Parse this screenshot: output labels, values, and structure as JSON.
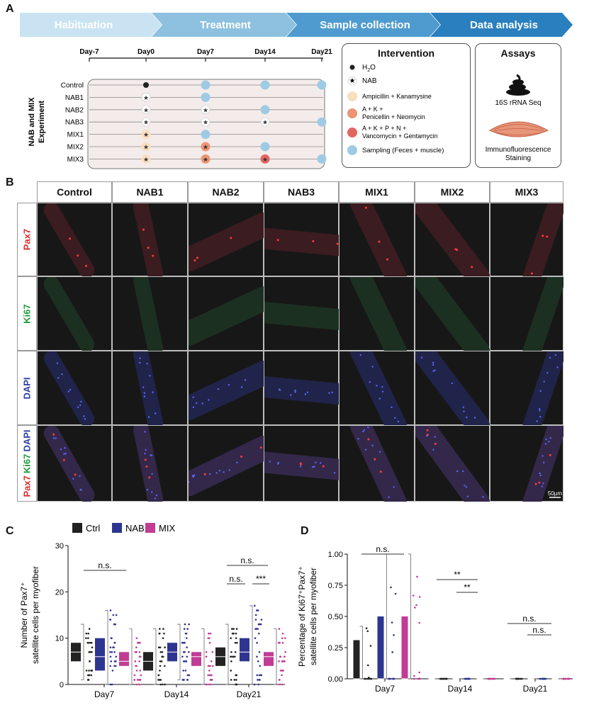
{
  "panel_labels": {
    "a": "A",
    "b": "B",
    "c": "C",
    "d": "D"
  },
  "timeline_stages": [
    "Habituation",
    "Treatment",
    "Sample collection",
    "Data analysis"
  ],
  "schedule": {
    "days": [
      "Day-7",
      "Day0",
      "Day7",
      "Day14",
      "Day21"
    ],
    "groups": [
      "Control",
      "NAB1",
      "NAB2",
      "NAB3",
      "MIX1",
      "MIX2",
      "MIX3"
    ],
    "side_label": [
      "NAB and MIX",
      "Experiment"
    ]
  },
  "intervention": {
    "title": "Intervention",
    "h2o_main": "H",
    "h2o_sub": "2",
    "h2o_tail": "O",
    "items": [
      "NAB",
      "Ampicillin + Kanamysine",
      "A + K +",
      "Penicellin + Neomycin",
      "A + K + P + N +",
      "Vancomycin + Gentamycin",
      "Sampling (Feces + muscle)"
    ]
  },
  "assays": {
    "title": "Assays",
    "items": [
      "16S rRNA Seq",
      "Immunofluorescence",
      "Staining"
    ]
  },
  "colors": {
    "h2o": "#222222",
    "amp": "#f8dfc0",
    "ak": "#ec9475",
    "akpn": "#e3665f",
    "sampling": "#9ecbe3",
    "ctrl": "#222222",
    "nab": "#2e3591",
    "mix": "#c23c95",
    "chev1": "#c9e3f2",
    "chev2": "#8ec1df",
    "chev3": "#4f9bcf",
    "chev4": "#2a7fbe"
  },
  "microscopy": {
    "columns": [
      "Control",
      "NAB1",
      "NAB2",
      "NAB3",
      "MIX1",
      "MIX2",
      "MIX3"
    ],
    "rows": [
      "Pax7",
      "Ki67",
      "DAPI"
    ],
    "merge": {
      "pax7": "Pax7",
      "ki67": "Ki67",
      "dapi": "DAPI"
    },
    "scalebar": "50μm"
  },
  "chart_data": [
    {
      "type": "box",
      "panel": "C",
      "ylabel": "Number of Pax7⁺ satellite cells per myofiber",
      "ylabel_lines": [
        "Number of Pax7⁺",
        "satellite cells per myofiber"
      ],
      "ylim": [
        0,
        30
      ],
      "yticks": [
        "0",
        "10",
        "20",
        "30"
      ],
      "categories": [
        "Day7",
        "Day14",
        "Day21"
      ],
      "legend": [
        "Ctrl",
        "NAB",
        "MIX"
      ],
      "series": [
        {
          "name": "Ctrl",
          "boxes": [
            {
              "q1": 5,
              "median": 7,
              "q3": 9,
              "min": 1,
              "max": 13
            },
            {
              "q1": 3,
              "median": 5,
              "q3": 7,
              "min": 0,
              "max": 12
            },
            {
              "q1": 4,
              "median": 6,
              "q3": 8,
              "min": 0,
              "max": 13
            }
          ]
        },
        {
          "name": "NAB",
          "boxes": [
            {
              "q1": 3,
              "median": 6,
              "q3": 10,
              "min": 0,
              "max": 16
            },
            {
              "q1": 5,
              "median": 7,
              "q3": 9,
              "min": 1,
              "max": 13
            },
            {
              "q1": 5,
              "median": 7,
              "q3": 10,
              "min": 0,
              "max": 17
            }
          ]
        },
        {
          "name": "MIX",
          "boxes": [
            {
              "q1": 4,
              "median": 5,
              "q3": 7,
              "min": 0,
              "max": 12
            },
            {
              "q1": 4,
              "median": 6,
              "q3": 7,
              "min": 0,
              "max": 12
            },
            {
              "q1": 4,
              "median": 6,
              "q3": 7,
              "min": 0,
              "max": 12
            }
          ]
        }
      ],
      "annotations": [
        {
          "text": "n.s.",
          "category": "Day7"
        },
        {
          "text": "n.s.",
          "category": "Day14"
        },
        {
          "text": "n.s.",
          "category": "Day21"
        },
        {
          "text": "***",
          "category": "Day21",
          "pair": "Ctrl-NAB"
        },
        {
          "text": "***",
          "category": "Day21",
          "pair": "NAB-MIX"
        }
      ]
    },
    {
      "type": "box",
      "panel": "D",
      "ylabel": "Percentage of Ki67⁺Pax7⁺ satellite cells per myofiber",
      "ylabel_lines": [
        "Percentage of Ki67⁺Pax7⁺",
        "satellite cells per myofiber"
      ],
      "ylim": [
        0,
        1
      ],
      "yticks": [
        "0.00",
        "0.25",
        "0.50",
        "0.75",
        "1.00"
      ],
      "categories": [
        "Day7",
        "Day14",
        "Day21"
      ],
      "series": [
        {
          "name": "Ctrl",
          "boxes": [
            {
              "q1": 0,
              "median": 0,
              "q3": 0.31,
              "min": 0,
              "max": 0.42
            },
            {
              "q1": 0,
              "median": 0,
              "q3": 0,
              "min": 0,
              "max": 0
            },
            {
              "q1": 0,
              "median": 0,
              "q3": 0,
              "min": 0,
              "max": 0
            }
          ]
        },
        {
          "name": "NAB",
          "boxes": [
            {
              "q1": 0,
              "median": 0,
              "q3": 0.5,
              "min": 0,
              "max": 1.0
            },
            {
              "q1": 0,
              "median": 0,
              "q3": 0,
              "min": 0,
              "max": 0
            },
            {
              "q1": 0,
              "median": 0,
              "q3": 0,
              "min": 0,
              "max": 0
            }
          ]
        },
        {
          "name": "MIX",
          "boxes": [
            {
              "q1": 0,
              "median": 0,
              "q3": 0.5,
              "min": 0,
              "max": 1.0
            },
            {
              "q1": 0,
              "median": 0,
              "q3": 0,
              "min": 0,
              "max": 0
            },
            {
              "q1": 0,
              "median": 0,
              "q3": 0,
              "min": 0,
              "max": 0
            }
          ]
        }
      ],
      "annotations": [
        {
          "text": "n.s.",
          "category": "Day7"
        },
        {
          "text": "**",
          "category": "Day14",
          "pair": "Ctrl-MIX"
        },
        {
          "text": "**",
          "category": "Day14",
          "pair": "NAB-MIX"
        },
        {
          "text": "n.s.",
          "category": "Day21",
          "pair": "Ctrl-MIX"
        },
        {
          "text": "n.s.",
          "category": "Day21",
          "pair": "NAB-MIX"
        }
      ]
    }
  ]
}
